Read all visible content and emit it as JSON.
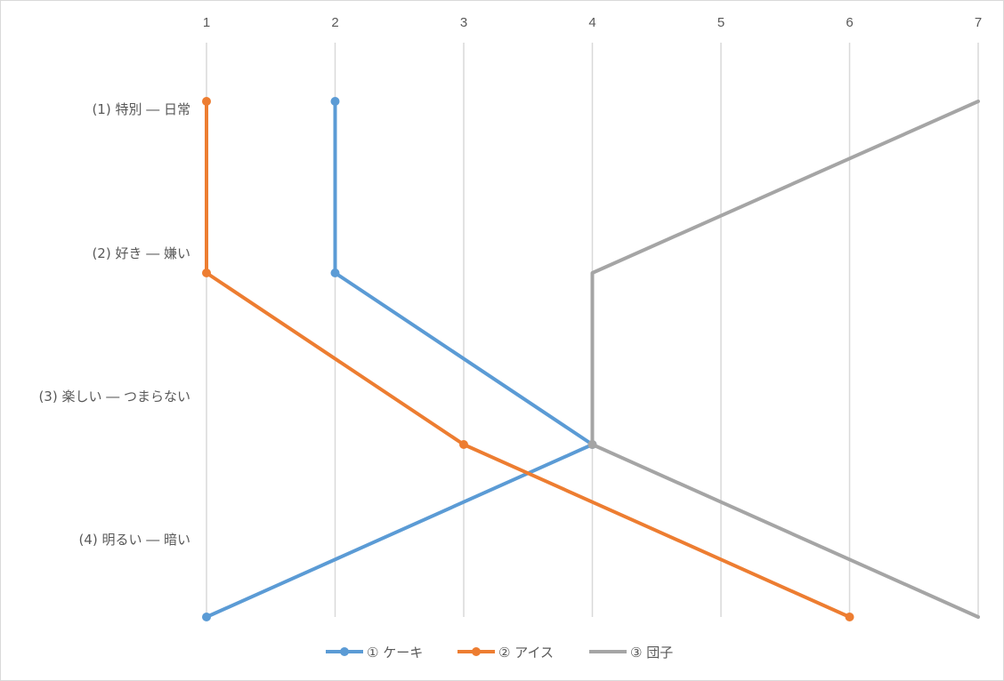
{
  "chart_data": {
    "type": "line",
    "x_ticks": [
      "1",
      "2",
      "3",
      "4",
      "5",
      "6",
      "7"
    ],
    "xlim": [
      1,
      7
    ],
    "categories": [
      "(1) 特別 ― 日常",
      "(2) 好き ― 嫌い",
      "(3) 楽しい ― つまらない",
      "(4) 明るい ― 暗い"
    ],
    "grid": "vertical",
    "legend_position": "bottom",
    "series": [
      {
        "name": "① ケーキ",
        "color": "#5b9bd5",
        "values": [
          2,
          2,
          4,
          1
        ],
        "markers": [
          true,
          true,
          true,
          true
        ]
      },
      {
        "name": "② アイス",
        "color": "#ed7d31",
        "values": [
          1,
          1,
          3,
          6
        ],
        "markers": [
          true,
          true,
          true,
          true
        ]
      },
      {
        "name": "③ 団子",
        "color": "#a5a5a5",
        "values": [
          7,
          4,
          4,
          7
        ],
        "markers": [
          false,
          false,
          true,
          false
        ]
      }
    ]
  }
}
